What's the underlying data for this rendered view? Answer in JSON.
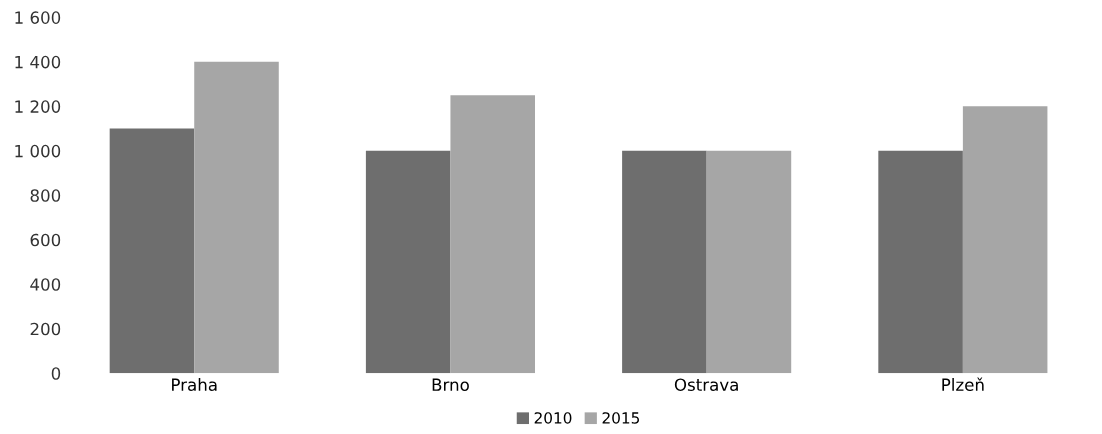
{
  "chart_data": {
    "type": "bar",
    "categories": [
      "Praha",
      "Brno",
      "Ostrava",
      "Plzeň"
    ],
    "series": [
      {
        "name": "2010",
        "color": "#6e6e6e",
        "values": [
          1100,
          1000,
          1000,
          1000
        ]
      },
      {
        "name": "2015",
        "color": "#a6a6a6",
        "values": [
          1400,
          1250,
          1000,
          1200
        ]
      }
    ],
    "ylim": [
      0,
      1600
    ],
    "yticks": [
      0,
      200,
      400,
      600,
      800,
      {
        "value": 1000,
        "label": "1 000"
      },
      {
        "value": 1200,
        "label": "1 200"
      },
      {
        "value": 1400,
        "label": "1 400"
      },
      {
        "value": 1600,
        "label": "1 600"
      }
    ],
    "legend": "bottom",
    "grid": false
  }
}
